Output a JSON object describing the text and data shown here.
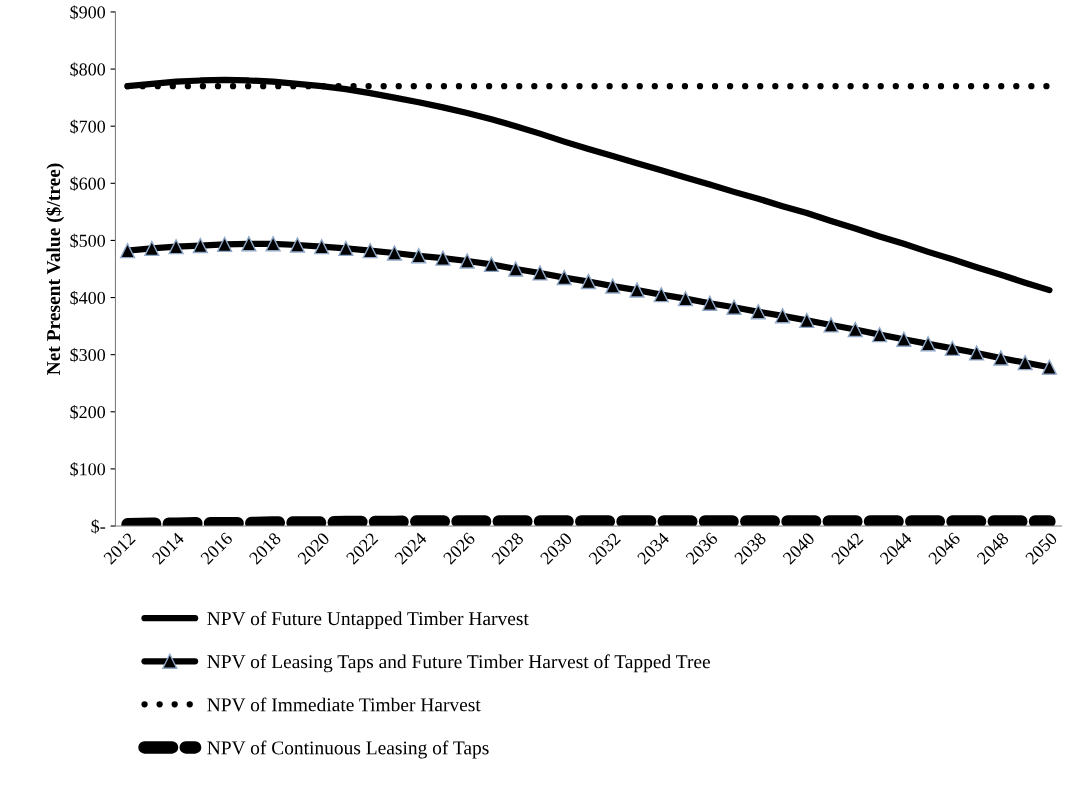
{
  "chart_data": {
    "type": "line",
    "ylabel": "Net Present Value ($/tree)",
    "categories": [
      "2012",
      null,
      "2014",
      null,
      "2016",
      null,
      "2018",
      null,
      "2020",
      null,
      "2022",
      null,
      "2024",
      null,
      "2026",
      null,
      "2028",
      null,
      "2030",
      null,
      "2032",
      null,
      "2034",
      null,
      "2036",
      null,
      "2038",
      null,
      "2040",
      null,
      "2042",
      null,
      "2044",
      null,
      "2046",
      null,
      "2048",
      null,
      "2050"
    ],
    "ylim": [
      0,
      900
    ],
    "yticks": [
      {
        "value": 0,
        "label": "$-"
      },
      {
        "value": 100,
        "label": "$100"
      },
      {
        "value": 200,
        "label": "$200"
      },
      {
        "value": 300,
        "label": "$300"
      },
      {
        "value": 400,
        "label": "$400"
      },
      {
        "value": 500,
        "label": "$500"
      },
      {
        "value": 600,
        "label": "$600"
      },
      {
        "value": 700,
        "label": "$700"
      },
      {
        "value": 800,
        "label": "$800"
      },
      {
        "value": 900,
        "label": "$900"
      }
    ],
    "grid": false,
    "legend": "bottom",
    "series": [
      {
        "name": "NPV of Future Untapped Timber Harvest",
        "color": "#000000",
        "line_style": "solid",
        "marker": "none",
        "values": [
          770,
          774,
          778,
          780,
          781,
          780,
          778,
          774,
          770,
          765,
          758,
          750,
          742,
          733,
          723,
          712,
          700,
          687,
          673,
          660,
          648,
          635,
          623,
          610,
          598,
          585,
          573,
          560,
          548,
          534,
          521,
          507,
          494,
          480,
          467,
          453,
          440,
          426,
          413
        ]
      },
      {
        "name": "NPV of Leasing Taps and Future Timber Harvest of Tapped Tree",
        "color": "#000000",
        "line_style": "solid",
        "marker": "triangle",
        "values": [
          482,
          486,
          489,
          491,
          493,
          494,
          494,
          492,
          489,
          486,
          482,
          478,
          473,
          469,
          464,
          458,
          450,
          443,
          435,
          428,
          420,
          413,
          405,
          398,
          390,
          383,
          375,
          368,
          360,
          352,
          344,
          335,
          327,
          319,
          311,
          303,
          294,
          286,
          278
        ]
      },
      {
        "name": "NPV of Immediate Timber Harvest",
        "color": "#000000",
        "line_style": "dotted",
        "marker": "none",
        "values": [
          770,
          770,
          770,
          770,
          770,
          770,
          770,
          770,
          770,
          770,
          770,
          770,
          770,
          770,
          770,
          770,
          770,
          770,
          770,
          770,
          770,
          770,
          770,
          770,
          770,
          770,
          770,
          770,
          770,
          770,
          770,
          770,
          770,
          770,
          770,
          770,
          770,
          770,
          770
        ]
      },
      {
        "name": "NPV of Continuous Leasing of Taps",
        "color": "#000000",
        "line_style": "dashed",
        "marker": "none",
        "values": [
          3,
          4,
          4,
          5,
          5,
          5,
          6,
          6,
          6,
          7,
          7,
          7,
          8,
          8,
          8,
          8,
          8,
          8,
          8,
          8,
          8,
          8,
          8,
          8,
          8,
          8,
          8,
          8,
          8,
          8,
          8,
          8,
          8,
          8,
          8,
          8,
          8,
          8,
          8
        ]
      }
    ]
  }
}
